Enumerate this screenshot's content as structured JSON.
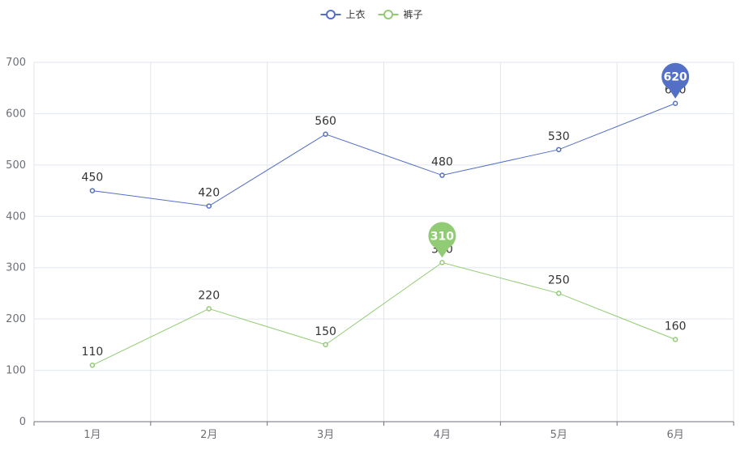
{
  "chart_data": {
    "type": "line",
    "categories": [
      "1月",
      "2月",
      "3月",
      "4月",
      "5月",
      "6月"
    ],
    "ylim": [
      0,
      700
    ],
    "yticks": [
      0,
      100,
      200,
      300,
      400,
      500,
      600,
      700
    ],
    "grid": true,
    "legend_position": "top-center",
    "series": [
      {
        "name": "上衣",
        "values": [
          450,
          420,
          560,
          480,
          530,
          620
        ],
        "color": "#5470c6",
        "max_marker": "620",
        "max_index": 5
      },
      {
        "name": "裤子",
        "values": [
          110,
          220,
          150,
          310,
          250,
          160
        ],
        "color": "#91cc75",
        "max_marker": "310",
        "max_index": 3
      }
    ]
  }
}
